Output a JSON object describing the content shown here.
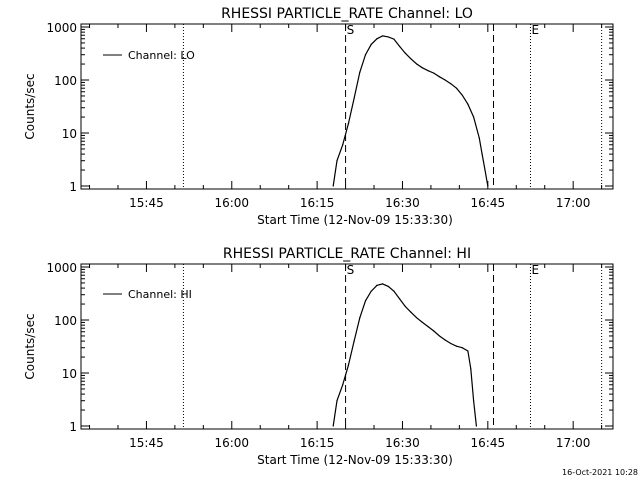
{
  "footer": {
    "timestamp": "16-Oct-2021 10:28"
  },
  "chart_data": [
    {
      "type": "line",
      "title": "RHESSI PARTICLE_RATE Channel: LO",
      "xlabel": "Start Time (12-Nov-09 15:33:30)",
      "ylabel": "Counts/sec",
      "yscale": "log",
      "xlim": [
        "15:33:30",
        "17:07:00"
      ],
      "ylim": [
        1,
        1000
      ],
      "x_ticks": [
        "15:45",
        "16:00",
        "16:15",
        "16:30",
        "16:45",
        "17:00"
      ],
      "y_ticks": [
        "1",
        "10",
        "100",
        "1000"
      ],
      "legend": {
        "label": "Channel: LO",
        "placement": "top-left"
      },
      "markers": [
        {
          "time": "15:51:30",
          "style": "dotted",
          "label": ""
        },
        {
          "time": "16:20:00",
          "style": "dashed",
          "label": "S"
        },
        {
          "time": "16:46:00",
          "style": "dashed",
          "label": ""
        },
        {
          "time": "16:52:30",
          "style": "dotted",
          "label": "E"
        },
        {
          "time": "17:05:00",
          "style": "dotted",
          "label": ""
        }
      ],
      "series": [
        {
          "name": "Channel: LO",
          "x": [
            "16:17:50",
            "16:18:30",
            "16:19:30",
            "16:20:30",
            "16:21:30",
            "16:22:30",
            "16:23:30",
            "16:24:30",
            "16:25:30",
            "16:26:30",
            "16:27:30",
            "16:28:30",
            "16:29:30",
            "16:30:30",
            "16:31:30",
            "16:32:30",
            "16:33:30",
            "16:34:30",
            "16:35:30",
            "16:36:30",
            "16:37:30",
            "16:38:30",
            "16:39:30",
            "16:40:30",
            "16:41:30",
            "16:42:30",
            "16:43:30",
            "16:44:00",
            "16:44:30",
            "16:45:00"
          ],
          "y": [
            1,
            3,
            6,
            15,
            45,
            140,
            300,
            470,
            600,
            680,
            650,
            590,
            430,
            320,
            250,
            200,
            170,
            150,
            135,
            115,
            100,
            85,
            70,
            52,
            35,
            20,
            8,
            4,
            2,
            1
          ]
        }
      ]
    },
    {
      "type": "line",
      "title": "RHESSI PARTICLE_RATE Channel: HI",
      "xlabel": "Start Time (12-Nov-09 15:33:30)",
      "ylabel": "Counts/sec",
      "yscale": "log",
      "xlim": [
        "15:33:30",
        "17:07:00"
      ],
      "ylim": [
        1,
        1000
      ],
      "x_ticks": [
        "15:45",
        "16:00",
        "16:15",
        "16:30",
        "16:45",
        "17:00"
      ],
      "y_ticks": [
        "1",
        "10",
        "100",
        "1000"
      ],
      "legend": {
        "label": "Channel: HI",
        "placement": "top-left"
      },
      "markers": [
        {
          "time": "15:51:30",
          "style": "dotted",
          "label": ""
        },
        {
          "time": "16:20:00",
          "style": "dashed",
          "label": "S"
        },
        {
          "time": "16:46:00",
          "style": "dashed",
          "label": ""
        },
        {
          "time": "16:52:30",
          "style": "dotted",
          "label": "E"
        },
        {
          "time": "17:05:00",
          "style": "dotted",
          "label": ""
        }
      ],
      "series": [
        {
          "name": "Channel: HI",
          "x": [
            "16:17:50",
            "16:18:30",
            "16:19:30",
            "16:20:30",
            "16:21:30",
            "16:22:30",
            "16:23:30",
            "16:24:30",
            "16:25:30",
            "16:26:30",
            "16:27:30",
            "16:28:30",
            "16:29:30",
            "16:30:30",
            "16:31:30",
            "16:32:30",
            "16:33:30",
            "16:34:30",
            "16:35:30",
            "16:36:30",
            "16:37:30",
            "16:38:30",
            "16:39:30",
            "16:40:30",
            "16:41:30",
            "16:42:00",
            "16:42:30",
            "16:43:00"
          ],
          "y": [
            1,
            3,
            6,
            14,
            40,
            110,
            230,
            350,
            450,
            480,
            430,
            350,
            250,
            180,
            140,
            110,
            90,
            75,
            62,
            50,
            42,
            36,
            32,
            30,
            26,
            12,
            3,
            1
          ]
        }
      ]
    }
  ]
}
